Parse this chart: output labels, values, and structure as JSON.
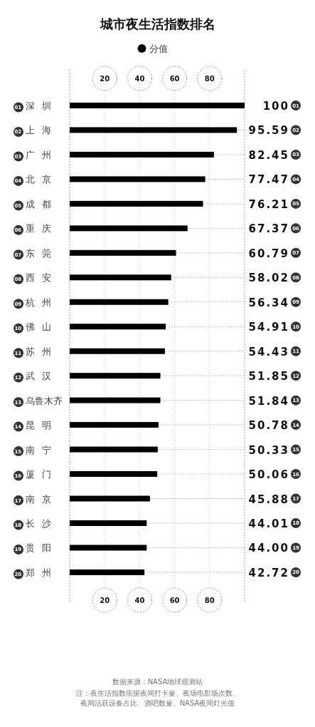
{
  "chart_data": {
    "type": "bar",
    "orientation": "horizontal",
    "title": "城市夜生活指数排名",
    "categories": [
      "01 深圳",
      "02 上海",
      "03 广州",
      "04 北京",
      "05 成都",
      "06 重庆",
      "07 东莞",
      "08 西安",
      "09 杭州",
      "10 佛山",
      "11 苏州",
      "12 武汉",
      "13 乌鲁木齐",
      "14 昆明",
      "15 南宁",
      "16 厦门",
      "17 南京",
      "18 长沙",
      "19 贵阳",
      "20 郑州"
    ],
    "series": [
      {
        "name": "分值",
        "color": "#000000",
        "values": [
          100,
          95.59,
          82.45,
          77.47,
          76.21,
          67.37,
          60.79,
          58.02,
          56.34,
          54.91,
          54.43,
          51.85,
          51.84,
          50.78,
          50.33,
          50.06,
          45.88,
          44.01,
          44.0,
          42.72
        ],
        "value_labels": [
          "100",
          "95.59",
          "82.45",
          "77.47",
          "76.21",
          "67.37",
          "60.79",
          "58.02",
          "56.34",
          "54.91",
          "54.43",
          "51.85",
          "51.84",
          "50.78",
          "50.33",
          "50.06",
          "45.88",
          "44.01",
          "44.00",
          "42.72"
        ]
      }
    ],
    "y2_categories": [
      "01",
      "02",
      "03",
      "04",
      "05",
      "06",
      "07",
      "08",
      "09",
      "10",
      "11",
      "12",
      "13",
      "14",
      "15",
      "16",
      "17",
      "18",
      "19",
      "20"
    ],
    "xlim": [
      0,
      100
    ],
    "xticks": [
      20,
      40,
      60,
      80
    ],
    "x2lim": [
      0,
      100
    ],
    "x2ticks": [
      20,
      40,
      60,
      80
    ],
    "grid": "x",
    "legend": "top",
    "annotations": [
      "数据来源：NASA地球观测站",
      "注：夜生活指数依据夜间打卡量、夜场电影场次数、夜间活跃设备占比、酒吧数量、NASA夜间灯光值"
    ]
  }
}
